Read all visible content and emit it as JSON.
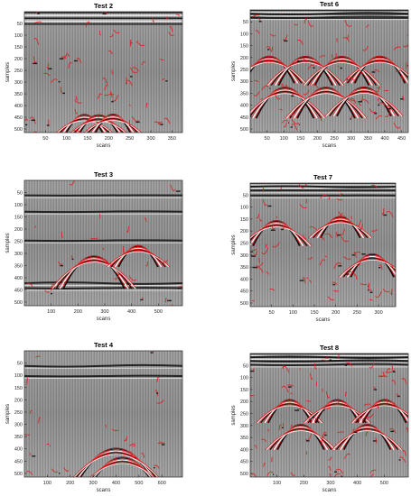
{
  "chart_data": [
    {
      "type": "heatmap",
      "title": "Test 2",
      "xlabel": "scans",
      "ylabel": "samples",
      "xticks": [
        50,
        100,
        150,
        200,
        250,
        300,
        350
      ],
      "yticks": [
        50,
        100,
        150,
        200,
        250,
        300,
        350,
        400,
        450,
        500
      ],
      "xlim": [
        0,
        375
      ],
      "ylim": [
        515,
        0
      ],
      "colormap": "grayscale radargram with red detected-edge overlay"
    },
    {
      "type": "heatmap",
      "title": "Test 6",
      "xlabel": "scans",
      "ylabel": "samples",
      "xticks": [
        50,
        100,
        150,
        200,
        250,
        300,
        350,
        400,
        450
      ],
      "yticks": [
        50,
        100,
        150,
        200,
        250,
        300,
        350,
        400,
        450,
        500
      ],
      "xlim": [
        0,
        470
      ],
      "ylim": [
        515,
        0
      ],
      "colormap": "grayscale radargram with red detected-edge overlay"
    },
    {
      "type": "heatmap",
      "title": "Test 3",
      "xlabel": "scans",
      "ylabel": "samples",
      "xticks": [
        100,
        200,
        300,
        400,
        500
      ],
      "yticks": [
        50,
        100,
        150,
        200,
        250,
        300,
        350,
        400,
        450,
        500
      ],
      "xlim": [
        0,
        590
      ],
      "ylim": [
        515,
        0
      ],
      "colormap": "grayscale radargram with red detected-edge overlay"
    },
    {
      "type": "heatmap",
      "title": "Test 7",
      "xlabel": "scans",
      "ylabel": "samples",
      "xticks": [
        50,
        100,
        150,
        200,
        250,
        300
      ],
      "yticks": [
        50,
        100,
        150,
        200,
        250,
        300,
        350,
        400,
        450,
        500
      ],
      "xlim": [
        0,
        340
      ],
      "ylim": [
        515,
        0
      ],
      "colormap": "grayscale radargram with red detected-edge overlay"
    },
    {
      "type": "heatmap",
      "title": "Test 4",
      "xlabel": "scans",
      "ylabel": "samples",
      "xticks": [
        100,
        200,
        300,
        400,
        500,
        600
      ],
      "yticks": [
        50,
        100,
        150,
        200,
        250,
        300,
        350,
        400,
        450,
        500
      ],
      "xlim": [
        0,
        690
      ],
      "ylim": [
        515,
        0
      ],
      "colormap": "grayscale radargram with red detected-edge overlay"
    },
    {
      "type": "heatmap",
      "title": "Test 8",
      "xlabel": "scans",
      "ylabel": "samples",
      "xticks": [
        100,
        200,
        300,
        400,
        500
      ],
      "yticks": [
        50,
        100,
        150,
        200,
        250,
        300,
        350,
        400,
        450,
        500
      ],
      "xlim": [
        0,
        590
      ],
      "ylim": [
        515,
        0
      ],
      "colormap": "grayscale radargram with red detected-edge overlay"
    }
  ]
}
